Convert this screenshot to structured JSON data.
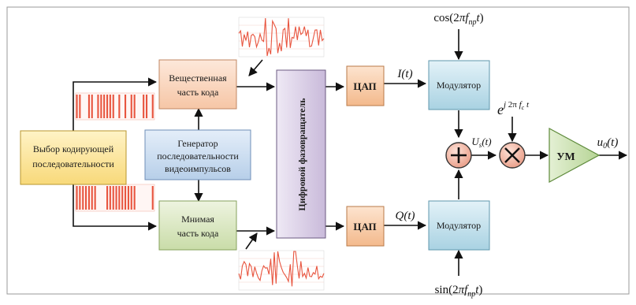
{
  "blocks": {
    "select": [
      "Выбор кодирующей",
      "последовательности"
    ],
    "real": [
      "Вещественная",
      "часть кода"
    ],
    "imag": [
      "Мнимая",
      "часть кода"
    ],
    "gen": [
      "Генератор",
      "последовательности",
      "видеоимпульсов"
    ],
    "phase": "Цифровой фазовращатель",
    "dac_top": "ЦАП",
    "dac_bot": "ЦАП",
    "mod_top": "Модулятор",
    "mod_bot": "Модулятор",
    "amp": "УМ"
  },
  "signals": {
    "cos": "cos(2πf_пр t)",
    "sin": "sin(2πf_пр t)",
    "I": "I(t)",
    "Q": "Q(t)",
    "exp": "e^{j2πf_c t}",
    "Ue": "U_s(t)",
    "out": "u_0(t)"
  },
  "colors": {
    "select": "#fde7a4",
    "real": "#fbd9c4",
    "imag": "#dfe9c9",
    "gen": "#cfe0f2",
    "phase": "#ddd3e8",
    "dac": "#fbd2b2",
    "mod": "#cfe6ef",
    "amp": "#cfe3b6",
    "sum": "#f4c6b8",
    "signal": "#e8553f"
  }
}
